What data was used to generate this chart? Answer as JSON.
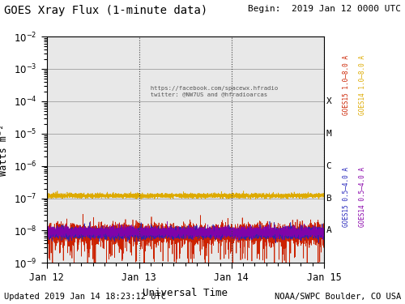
{
  "title": "GOES Xray Flux (1-minute data)",
  "begin_label": "Begin:  2019 Jan 12 0000 UTC",
  "updated_label": "Updated 2019 Jan 14 18:23:12 UTC",
  "agency_label": "NOAA/SWPC Boulder, CO USA",
  "xlabel": "Universal Time",
  "ylabel": "Watts m⁻²",
  "ylim": [
    1e-09,
    0.01
  ],
  "xtick_labels": [
    "Jan 12",
    "Jan 13",
    "Jan 14",
    "Jan 15"
  ],
  "flare_classes": [
    "X",
    "M",
    "C",
    "B",
    "A"
  ],
  "flare_levels": [
    0.0001,
    1e-05,
    1e-06,
    1e-07,
    1e-08
  ],
  "background_color": "#ffffff",
  "plot_bg_color": "#e8e8e8",
  "goes15_long_color": "#cc2200",
  "goes14_long_color": "#ddaa00",
  "goes15_short_color": "#2222bb",
  "goes14_short_color": "#8800aa",
  "annotation_line1": "  https://facebook.com/spacewx.hfradio",
  "annotation_line2": "  twitter: @NW7US and @hfradioarcas",
  "vline_color": "#444444",
  "hline_color": "#aaaaaa",
  "seed": 42,
  "n_points": 4320
}
